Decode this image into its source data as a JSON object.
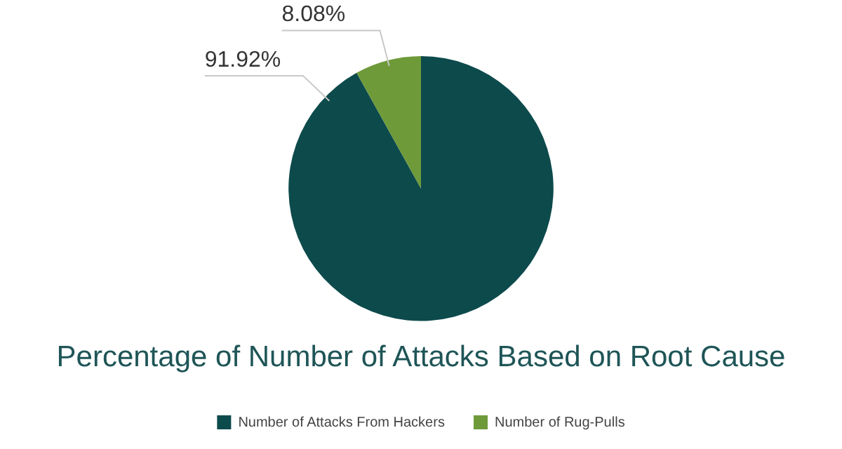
{
  "chart_data": {
    "type": "pie",
    "title": "Percentage of Number of Attacks Based on Root Cause",
    "categories": [
      "Number of Attacks From Hackers",
      "Number of Rug-Pulls"
    ],
    "values": [
      91.92,
      8.08
    ],
    "colors": [
      "#0d4a4c",
      "#6e9a3a"
    ],
    "value_labels": [
      "91.92%",
      "8.08%"
    ],
    "legend": "bottom"
  }
}
